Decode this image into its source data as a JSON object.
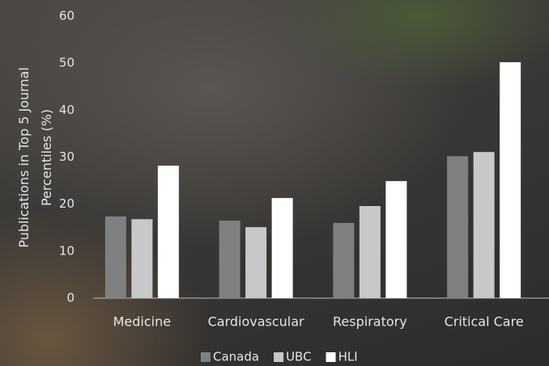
{
  "chart_data": {
    "type": "bar",
    "y_axis_label": "Publications in Top 5 Journal Percentiles (%)",
    "categories": [
      "Medicine",
      "Cardiovascular",
      "Respiratory",
      "Critical Care"
    ],
    "series": [
      {
        "name": "Canada",
        "color": "#808080",
        "values": [
          17.4,
          16.5,
          16.0,
          30.2
        ]
      },
      {
        "name": "UBC",
        "color": "#c8c8c8",
        "values": [
          16.8,
          15.1,
          19.6,
          31.1
        ]
      },
      {
        "name": "HLI",
        "color": "#ffffff",
        "values": [
          28.2,
          21.3,
          24.9,
          50.2
        ]
      }
    ],
    "ylim": [
      0,
      60
    ],
    "yticks": [
      0,
      10,
      20,
      30,
      40,
      50,
      60
    ],
    "grid": false,
    "legend": "bottom"
  }
}
